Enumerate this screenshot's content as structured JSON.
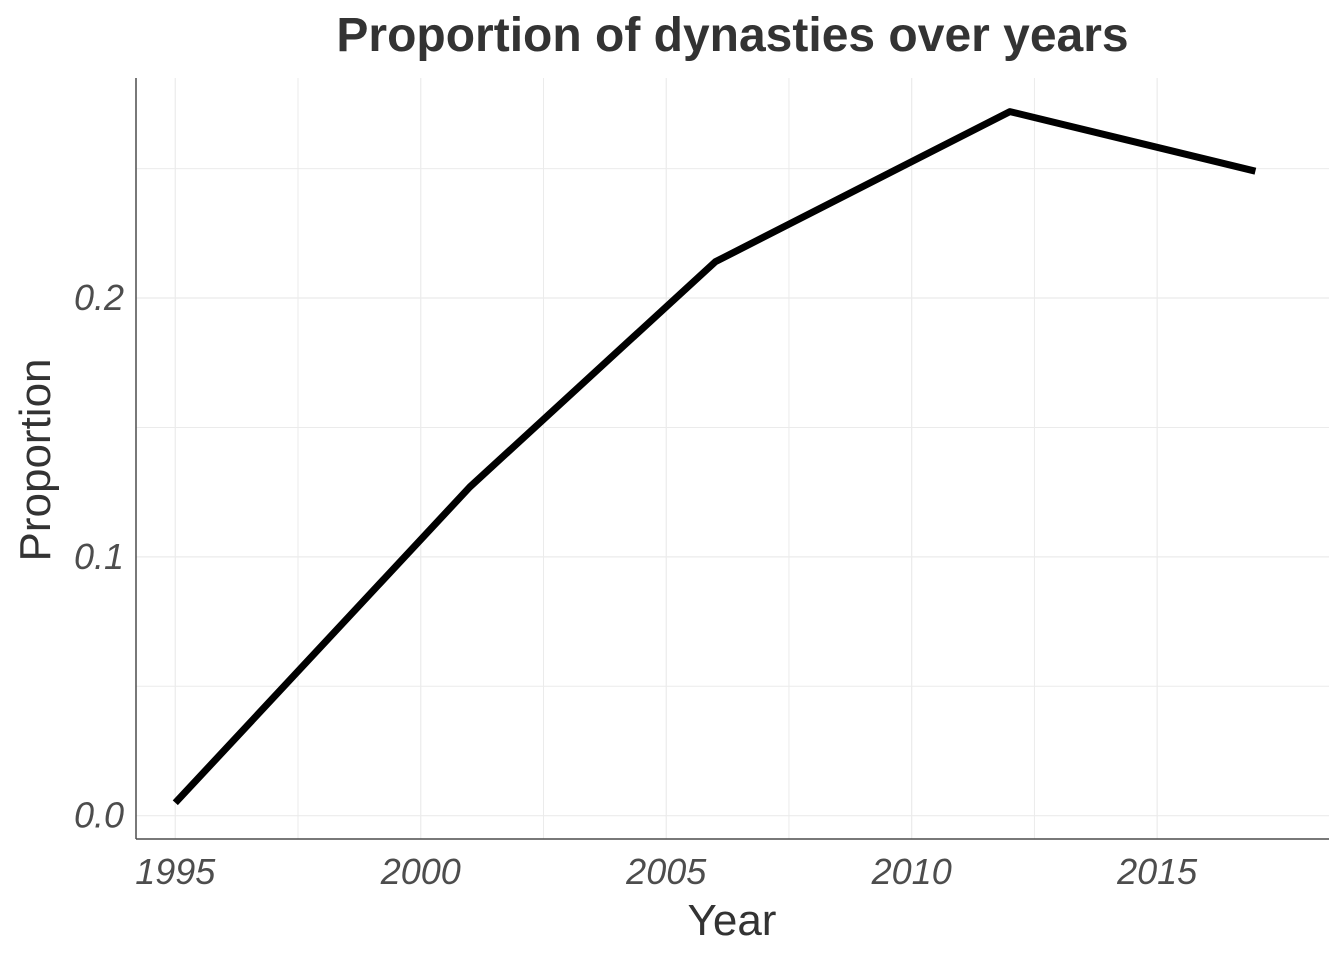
{
  "chart_data": {
    "type": "line",
    "title": "Proportion of dynasties over years",
    "xlabel": "Year",
    "ylabel": "Proportion",
    "x_ticks": [
      "1995",
      "2000",
      "2005",
      "2010",
      "2015"
    ],
    "y_ticks": [
      "0.0",
      "0.1",
      "0.2"
    ],
    "xlim": [
      1994.2,
      2018.5
    ],
    "ylim": [
      -0.009,
      0.285
    ],
    "grid": true,
    "legend": "none",
    "series": [
      {
        "x": [
          1995,
          2001,
          2006,
          2012,
          2017
        ],
        "y": [
          0.005,
          0.127,
          0.214,
          0.272,
          0.249
        ],
        "color": "#000000"
      }
    ]
  }
}
